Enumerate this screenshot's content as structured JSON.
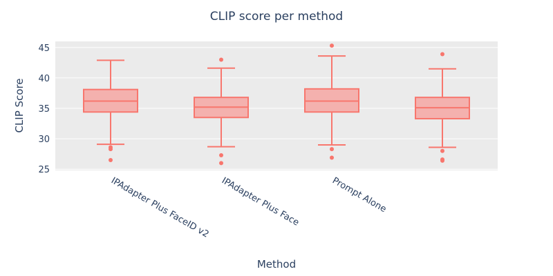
{
  "chart_data": {
    "type": "box",
    "title": "CLIP score per method",
    "xlabel": "Method",
    "ylabel": "CLIP Score",
    "ylim": [
      24.8,
      46.0
    ],
    "yticks": [
      25,
      30,
      35,
      40,
      45
    ],
    "grid": true,
    "legend": "none",
    "colors": {
      "plot_bg": "#ebebeb",
      "grid": "#ffffff",
      "box_fill": "#f4b1ae",
      "box_line": "#f8766d",
      "outlier": "#f8766d",
      "text": "#2a3f5f"
    },
    "categories": [
      "IPAdapter Plus FaceID v2",
      "IPAdapter Plus Face",
      "Prompt Alone",
      ""
    ],
    "boxes": [
      {
        "whisker_low": 29.1,
        "q1": 34.4,
        "median": 36.2,
        "q3": 38.1,
        "whisker_high": 42.9,
        "outliers": [
          28.3,
          28.6,
          26.5
        ]
      },
      {
        "whisker_low": 28.7,
        "q1": 33.5,
        "median": 35.2,
        "q3": 36.8,
        "whisker_high": 41.6,
        "outliers": [
          43.0,
          27.3,
          26.0
        ]
      },
      {
        "whisker_low": 29.0,
        "q1": 34.4,
        "median": 36.2,
        "q3": 38.2,
        "whisker_high": 43.6,
        "outliers": [
          45.3,
          28.3,
          26.9
        ]
      },
      {
        "whisker_low": 28.6,
        "q1": 33.3,
        "median": 35.1,
        "q3": 36.8,
        "whisker_high": 41.5,
        "outliers": [
          43.9,
          28.0,
          26.6,
          26.4
        ]
      }
    ]
  }
}
